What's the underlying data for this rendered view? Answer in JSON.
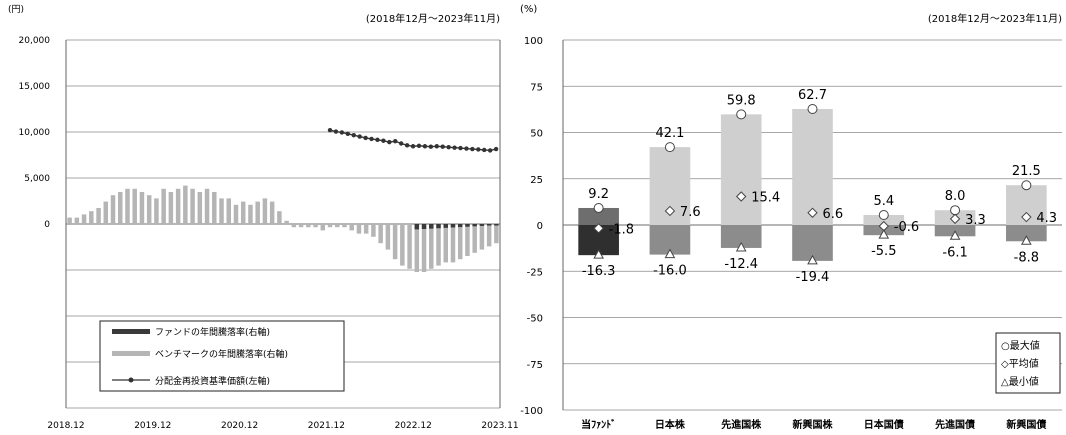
{
  "chart_data": [
    {
      "type": "line",
      "yunit": "(円)",
      "period": "(2018年12月～2023年11月)",
      "yticks": [
        "20,000",
        "15,000",
        "10,000",
        "5,000",
        "0"
      ],
      "ylim": [
        -20000,
        20000
      ],
      "xticks": [
        "2018.12",
        "2019.12",
        "2020.12",
        "2021.12",
        "2022.12",
        "2023.11"
      ],
      "legend": [
        "ファンドの年間騰落率(右軸)",
        "ベンチマークの年間騰落率(右軸)",
        "分配金再投資基準価額(左軸)"
      ],
      "nav_series": {
        "name": "分配金再投資基準価額(左軸)",
        "start_month_index": 36,
        "values": [
          10200,
          10050,
          9950,
          9800,
          9650,
          9500,
          9350,
          9250,
          9150,
          9050,
          8900,
          9000,
          8750,
          8550,
          8450,
          8500,
          8450,
          8400,
          8450,
          8400,
          8350,
          8300,
          8250,
          8200,
          8150,
          8100,
          8050,
          8000,
          8150
        ]
      },
      "benchmark_series": {
        "name": "ベンチマークの年間騰落率(右軸)",
        "values": [
          2,
          2,
          3,
          4,
          5,
          7,
          9,
          10,
          11,
          11,
          10,
          9,
          8,
          11,
          10,
          11,
          12,
          11,
          10,
          11,
          10,
          8,
          8,
          6,
          7,
          6,
          7,
          8,
          7,
          4,
          1,
          -1,
          -1,
          -1,
          -1,
          -2,
          -1,
          -1,
          -1,
          -2,
          -3,
          -3,
          -4,
          -6,
          -8,
          -11,
          -13,
          -14,
          -15,
          -15,
          -14,
          -13,
          -12,
          -12,
          -11,
          -10,
          -9,
          -8,
          -7,
          -6
        ]
      },
      "fund_series": {
        "name": "ファンドの年間騰落率(右軸)",
        "start_month_index": 48,
        "values": [
          -14,
          -13,
          -12,
          -11,
          -10,
          -9,
          -8,
          -7,
          -6,
          -5,
          -4,
          -4
        ]
      }
    },
    {
      "type": "bar",
      "yunit": "(%)",
      "period": "(2018年12月～2023年11月)",
      "ylim": [
        -100,
        100
      ],
      "yticks": [
        100,
        75,
        50,
        25,
        0,
        -25,
        -50,
        -75,
        -100
      ],
      "categories": [
        "当ﾌｧﾝﾄﾞ",
        "日本株",
        "先進国株",
        "新興国株",
        "日本国債",
        "先進国債",
        "新興国債"
      ],
      "max": [
        9.2,
        42.1,
        59.8,
        62.7,
        5.4,
        8.0,
        21.5
      ],
      "avg": [
        -1.8,
        7.6,
        15.4,
        6.6,
        -0.6,
        3.3,
        4.3
      ],
      "min": [
        -16.3,
        -16.0,
        -12.4,
        -19.4,
        -5.5,
        -6.1,
        -8.8
      ],
      "max_labels": [
        "9.2",
        "42.1",
        "59.8",
        "62.7",
        "5.4",
        "8.0",
        "21.5"
      ],
      "avg_labels": [
        "-1.8",
        "7.6",
        "15.4",
        "6.6",
        "-0.6",
        "3.3",
        "4.3"
      ],
      "min_labels": [
        "-16.3",
        "-16.0",
        "-12.4",
        "-19.4",
        "-5.5",
        "-6.1",
        "-8.8"
      ],
      "legend": [
        "○最大値",
        "◇平均値",
        "△最小値"
      ]
    }
  ]
}
